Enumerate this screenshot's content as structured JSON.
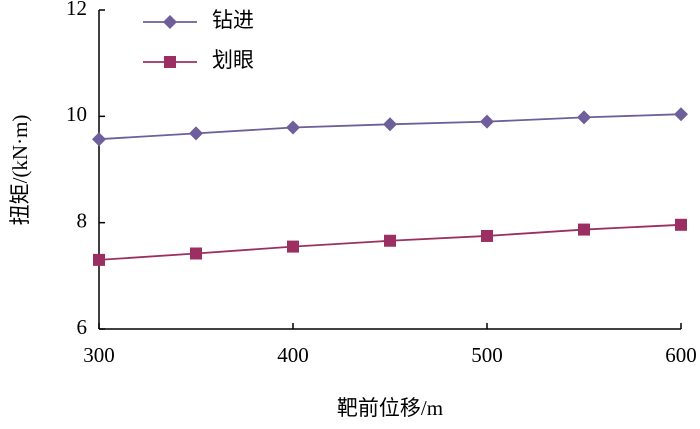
{
  "chart_data": {
    "type": "line",
    "x_label": "靶前位移/m",
    "y_label": "扭矩/(kN·m)",
    "x": [
      300,
      350,
      400,
      450,
      500,
      550,
      600
    ],
    "series": [
      {
        "name": "钻进",
        "color": "#6e5e9a",
        "marker": "diamond",
        "values": [
          9.57,
          9.68,
          9.79,
          9.85,
          9.9,
          9.98,
          10.04
        ]
      },
      {
        "name": "划眼",
        "color": "#9c2f62",
        "marker": "square",
        "values": [
          7.3,
          7.42,
          7.55,
          7.66,
          7.75,
          7.87,
          7.96
        ]
      }
    ],
    "xlim": [
      300,
      600
    ],
    "xticks": [
      300,
      400,
      500,
      600
    ],
    "ylim": [
      6,
      12
    ],
    "yticks": [
      6,
      8,
      10,
      12
    ],
    "grid": false,
    "legend": "upper-left"
  }
}
